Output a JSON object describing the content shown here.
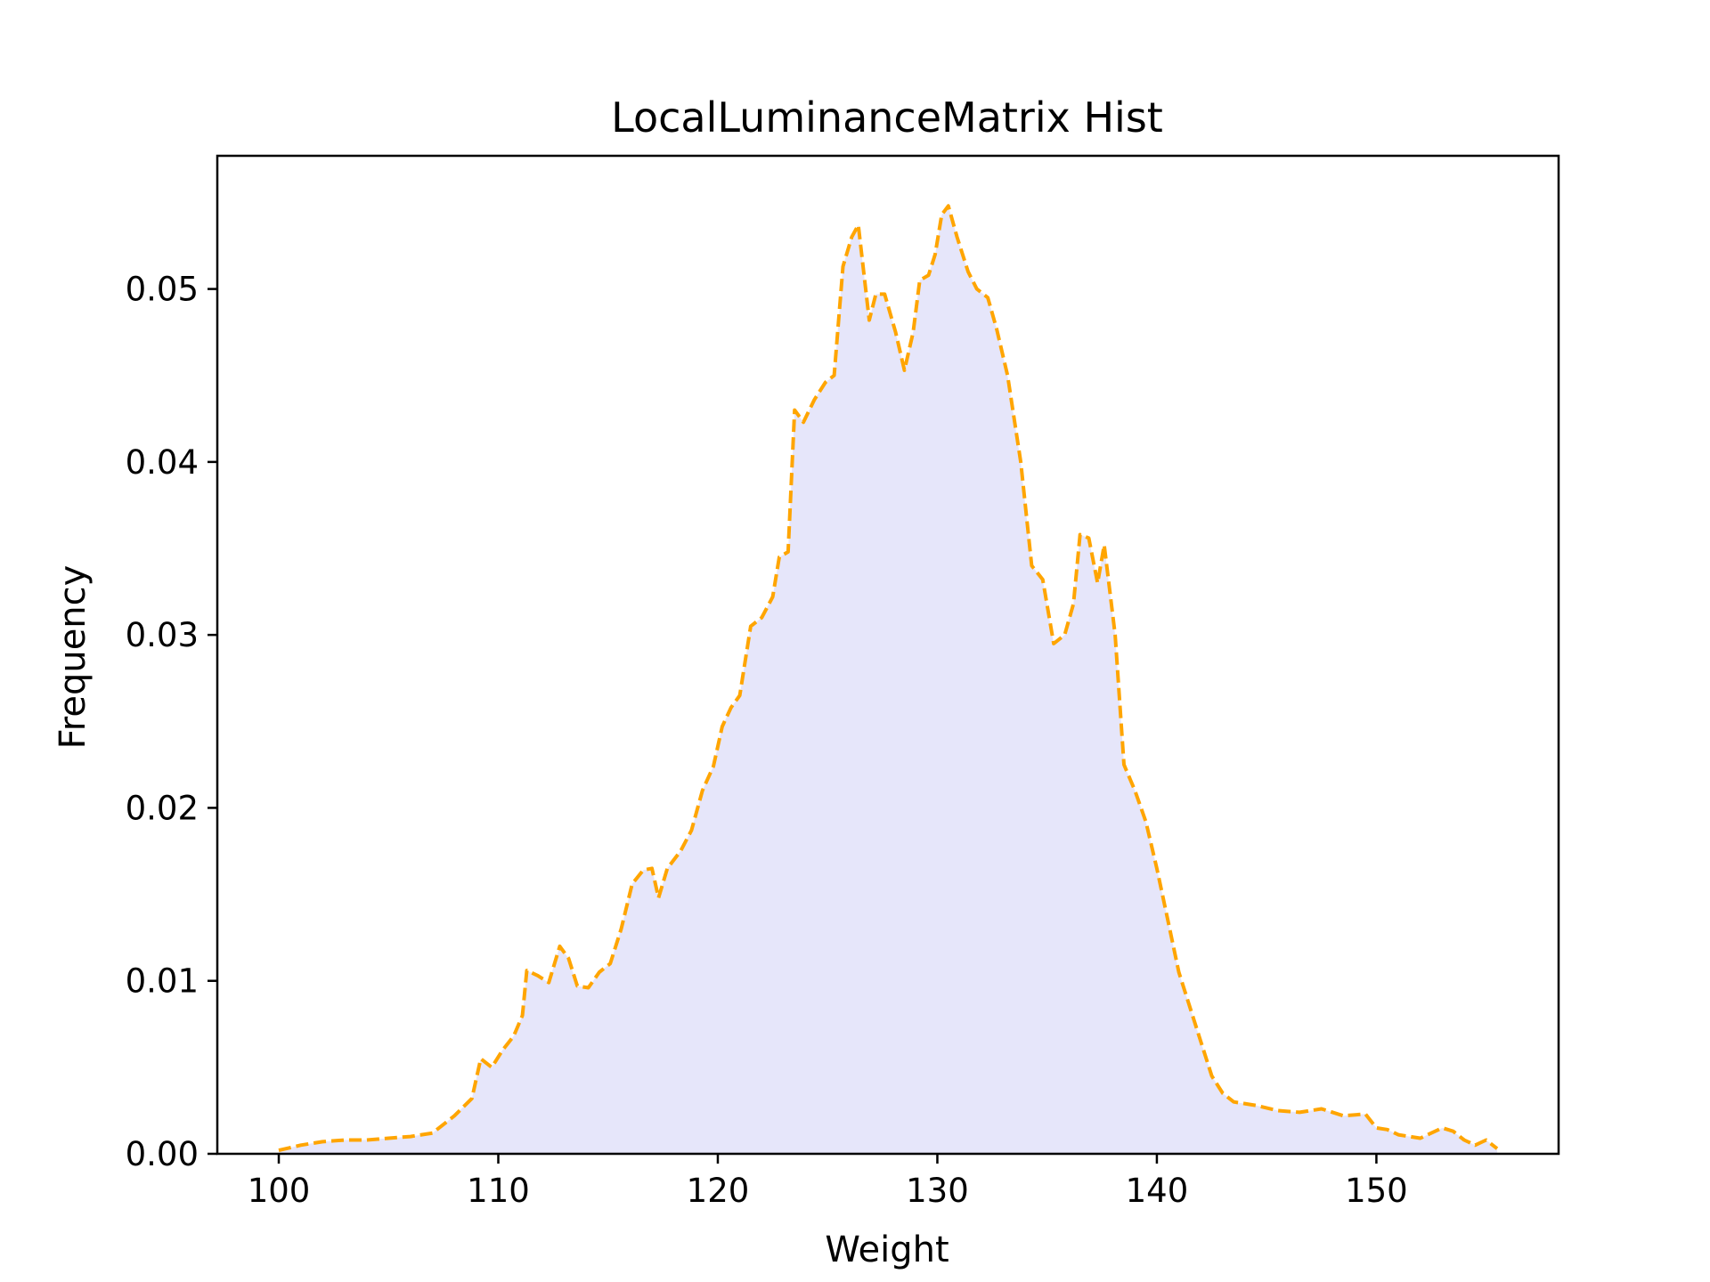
{
  "chart_data": {
    "type": "area",
    "title": "LocalLuminanceMatrix Hist",
    "xlabel": "Weight",
    "ylabel": "Frequency",
    "xlim": [
      97.2,
      158.3
    ],
    "ylim": [
      0,
      0.0577
    ],
    "xticks": [
      100,
      110,
      120,
      130,
      140,
      150
    ],
    "xtick_labels": [
      "100",
      "110",
      "120",
      "130",
      "140",
      "150"
    ],
    "yticks": [
      0,
      0.01,
      0.02,
      0.03,
      0.04,
      0.05
    ],
    "ytick_labels": [
      "0.00",
      "0.01",
      "0.02",
      "0.03",
      "0.04",
      "0.05"
    ],
    "grid": false,
    "legend": false,
    "series": [
      {
        "line_color": "#ffa500",
        "line_style": "dashed",
        "fill_color": "#e6e6fa",
        "points": [
          [
            100.0,
            0.0002
          ],
          [
            101.0,
            0.0005
          ],
          [
            102.0,
            0.0007
          ],
          [
            103.0,
            0.0008
          ],
          [
            104.0,
            0.0008
          ],
          [
            105.0,
            0.0009
          ],
          [
            106.0,
            0.001
          ],
          [
            107.0,
            0.0012
          ],
          [
            108.0,
            0.0022
          ],
          [
            108.8,
            0.0032
          ],
          [
            109.2,
            0.0055
          ],
          [
            109.7,
            0.005
          ],
          [
            110.2,
            0.006
          ],
          [
            110.7,
            0.0068
          ],
          [
            111.1,
            0.008
          ],
          [
            111.3,
            0.0106
          ],
          [
            111.8,
            0.0103
          ],
          [
            112.3,
            0.0099
          ],
          [
            112.8,
            0.012
          ],
          [
            113.2,
            0.0113
          ],
          [
            113.6,
            0.0097
          ],
          [
            114.1,
            0.0096
          ],
          [
            114.6,
            0.0105
          ],
          [
            115.1,
            0.011
          ],
          [
            115.6,
            0.013
          ],
          [
            116.1,
            0.0156
          ],
          [
            116.6,
            0.0164
          ],
          [
            117.0,
            0.0165
          ],
          [
            117.3,
            0.0148
          ],
          [
            117.7,
            0.0165
          ],
          [
            118.3,
            0.0175
          ],
          [
            118.8,
            0.0187
          ],
          [
            119.3,
            0.021
          ],
          [
            119.8,
            0.0224
          ],
          [
            120.2,
            0.0247
          ],
          [
            120.6,
            0.0258
          ],
          [
            121.0,
            0.0265
          ],
          [
            121.5,
            0.0305
          ],
          [
            122.0,
            0.031
          ],
          [
            122.5,
            0.0322
          ],
          [
            122.8,
            0.0345
          ],
          [
            123.2,
            0.0348
          ],
          [
            123.5,
            0.043
          ],
          [
            123.9,
            0.0423
          ],
          [
            124.4,
            0.0436
          ],
          [
            124.9,
            0.0446
          ],
          [
            125.3,
            0.045
          ],
          [
            125.7,
            0.0513
          ],
          [
            126.1,
            0.053
          ],
          [
            126.4,
            0.0537
          ],
          [
            126.9,
            0.0482
          ],
          [
            127.2,
            0.0497
          ],
          [
            127.6,
            0.0497
          ],
          [
            128.1,
            0.0475
          ],
          [
            128.5,
            0.0453
          ],
          [
            128.9,
            0.0475
          ],
          [
            129.2,
            0.0505
          ],
          [
            129.6,
            0.0508
          ],
          [
            129.9,
            0.052
          ],
          [
            130.2,
            0.0543
          ],
          [
            130.5,
            0.0548
          ],
          [
            130.9,
            0.053
          ],
          [
            131.4,
            0.051
          ],
          [
            131.8,
            0.05
          ],
          [
            132.3,
            0.0495
          ],
          [
            132.7,
            0.0477
          ],
          [
            133.2,
            0.045
          ],
          [
            133.8,
            0.04
          ],
          [
            134.3,
            0.034
          ],
          [
            134.8,
            0.0332
          ],
          [
            135.3,
            0.0295
          ],
          [
            135.8,
            0.03
          ],
          [
            136.2,
            0.0318
          ],
          [
            136.5,
            0.0358
          ],
          [
            136.9,
            0.0356
          ],
          [
            137.3,
            0.033
          ],
          [
            137.6,
            0.0352
          ],
          [
            138.1,
            0.03
          ],
          [
            138.5,
            0.0225
          ],
          [
            139.0,
            0.021
          ],
          [
            139.5,
            0.0192
          ],
          [
            140.0,
            0.0165
          ],
          [
            140.5,
            0.0135
          ],
          [
            141.0,
            0.0105
          ],
          [
            141.5,
            0.0085
          ],
          [
            142.0,
            0.0065
          ],
          [
            142.5,
            0.0045
          ],
          [
            143.0,
            0.0035
          ],
          [
            143.5,
            0.003
          ],
          [
            144.5,
            0.0028
          ],
          [
            145.5,
            0.0025
          ],
          [
            146.5,
            0.0024
          ],
          [
            147.5,
            0.0026
          ],
          [
            148.5,
            0.0022
          ],
          [
            149.5,
            0.0023
          ],
          [
            150.0,
            0.0015
          ],
          [
            150.5,
            0.0014
          ],
          [
            151.0,
            0.0011
          ],
          [
            152.0,
            0.0009
          ],
          [
            152.5,
            0.0012
          ],
          [
            153.0,
            0.0015
          ],
          [
            153.5,
            0.0013
          ],
          [
            154.0,
            0.0008
          ],
          [
            154.5,
            0.0005
          ],
          [
            155.0,
            0.0008
          ],
          [
            155.5,
            0.0003
          ]
        ]
      }
    ]
  }
}
